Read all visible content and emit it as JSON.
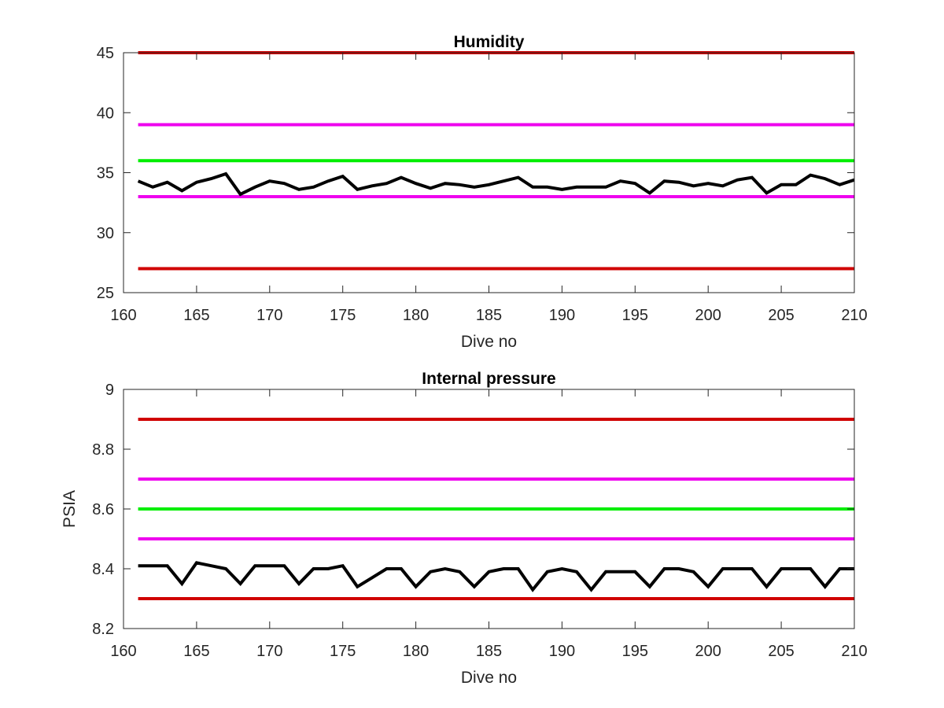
{
  "chart_data": [
    {
      "type": "line",
      "title": "Humidity",
      "xlabel": "Dive no",
      "ylabel": "",
      "xlim": [
        160,
        210
      ],
      "ylim": [
        25,
        45
      ],
      "xticks": [
        160,
        165,
        170,
        175,
        180,
        185,
        190,
        195,
        200,
        205,
        210
      ],
      "yticks": [
        25,
        30,
        35,
        40,
        45
      ],
      "grid": false,
      "legend": "none",
      "thresholds": [
        {
          "value": 45,
          "color": "#d00000"
        },
        {
          "value": 39,
          "color": "#ee00ee"
        },
        {
          "value": 36,
          "color": "#00ee00"
        },
        {
          "value": 33,
          "color": "#ee00ee"
        },
        {
          "value": 27,
          "color": "#d00000"
        }
      ],
      "series": [
        {
          "color": "#000000",
          "x": [
            161,
            162,
            163,
            164,
            165,
            166,
            167,
            168,
            169,
            170,
            171,
            172,
            173,
            174,
            175,
            176,
            177,
            178,
            179,
            180,
            181,
            182,
            183,
            184,
            185,
            186,
            187,
            188,
            189,
            190,
            191,
            192,
            193,
            194,
            195,
            196,
            197,
            198,
            199,
            200,
            201,
            202,
            203,
            204,
            205,
            206,
            207,
            208,
            209,
            210
          ],
          "y": [
            34.3,
            33.8,
            34.2,
            33.5,
            34.2,
            34.5,
            34.9,
            33.2,
            33.8,
            34.3,
            34.1,
            33.6,
            33.8,
            34.3,
            34.7,
            33.6,
            33.9,
            34.1,
            34.6,
            34.1,
            33.7,
            34.1,
            34.0,
            33.8,
            34.0,
            34.3,
            34.6,
            33.8,
            33.8,
            33.6,
            33.8,
            33.8,
            33.8,
            34.3,
            34.1,
            33.3,
            34.3,
            34.2,
            33.9,
            34.1,
            33.9,
            34.4,
            34.6,
            33.3,
            34.0,
            34.0,
            34.8,
            34.5,
            34.0,
            34.4
          ]
        }
      ]
    },
    {
      "type": "line",
      "title": "Internal pressure",
      "xlabel": "Dive no",
      "ylabel": "PSIA",
      "xlim": [
        160,
        210
      ],
      "ylim": [
        8.2,
        9.0
      ],
      "xticks": [
        160,
        165,
        170,
        175,
        180,
        185,
        190,
        195,
        200,
        205,
        210
      ],
      "yticks": [
        "8.2",
        "8.4",
        "8.6",
        "8.8",
        "9"
      ],
      "grid": false,
      "legend": "none",
      "thresholds": [
        {
          "value": 8.9,
          "color": "#d00000"
        },
        {
          "value": 8.7,
          "color": "#ee00ee"
        },
        {
          "value": 8.6,
          "color": "#00ee00"
        },
        {
          "value": 8.5,
          "color": "#ee00ee"
        },
        {
          "value": 8.3,
          "color": "#d00000"
        }
      ],
      "series": [
        {
          "color": "#000000",
          "x": [
            161,
            162,
            163,
            164,
            165,
            166,
            167,
            168,
            169,
            170,
            171,
            172,
            173,
            174,
            175,
            176,
            177,
            178,
            179,
            180,
            181,
            182,
            183,
            184,
            185,
            186,
            187,
            188,
            189,
            190,
            191,
            192,
            193,
            194,
            195,
            196,
            197,
            198,
            199,
            200,
            201,
            202,
            203,
            204,
            205,
            206,
            207,
            208,
            209,
            210
          ],
          "y": [
            8.41,
            8.41,
            8.41,
            8.35,
            8.42,
            8.41,
            8.4,
            8.35,
            8.41,
            8.41,
            8.41,
            8.35,
            8.4,
            8.4,
            8.41,
            8.34,
            8.37,
            8.4,
            8.4,
            8.34,
            8.39,
            8.4,
            8.39,
            8.34,
            8.39,
            8.4,
            8.4,
            8.33,
            8.39,
            8.4,
            8.39,
            8.33,
            8.39,
            8.39,
            8.39,
            8.34,
            8.4,
            8.4,
            8.39,
            8.34,
            8.4,
            8.4,
            8.4,
            8.34,
            8.4,
            8.4,
            8.4,
            8.34,
            8.4,
            8.4
          ]
        }
      ]
    }
  ]
}
